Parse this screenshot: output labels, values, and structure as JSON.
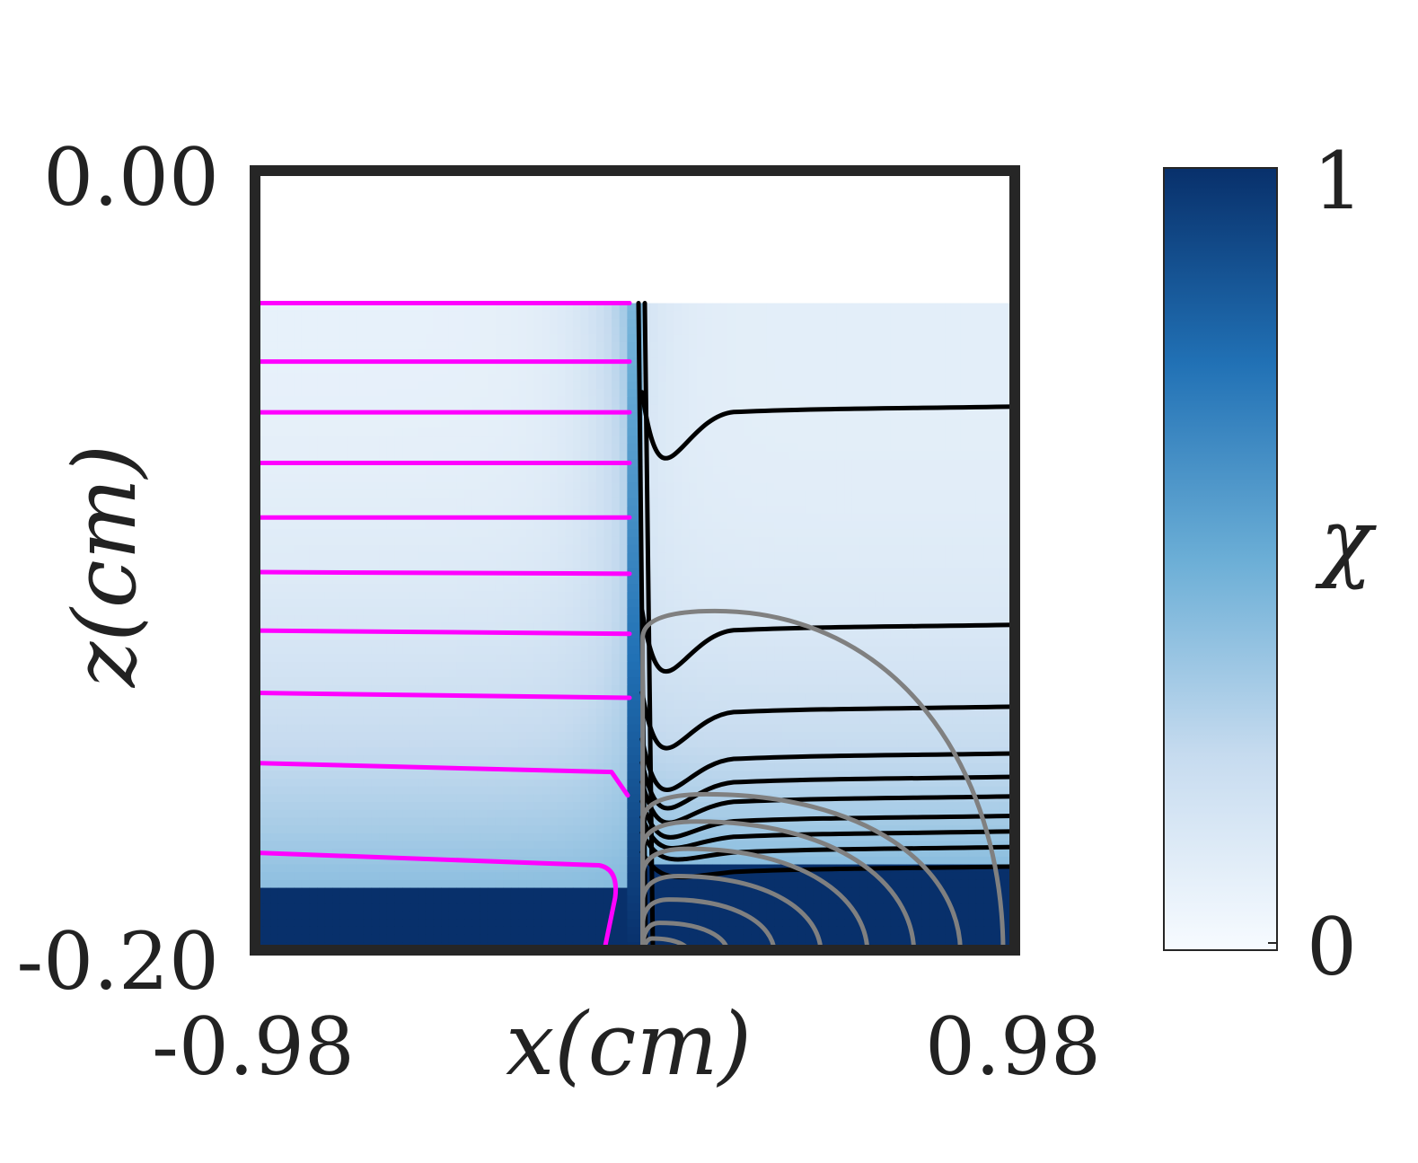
{
  "chart_data": {
    "type": "heatmap",
    "x_axis": {
      "label": "x(cm)",
      "tick_labels": [
        "-0.98",
        "0.98"
      ],
      "range": [
        -0.98,
        0.98
      ]
    },
    "y_axis": {
      "label": "z(cm)",
      "tick_labels": [
        "0.00",
        "-0.20"
      ],
      "range": [
        -0.2,
        0.0
      ]
    },
    "colorbar": {
      "label": "χ",
      "tick_labels": [
        "1",
        "0"
      ],
      "range": [
        0,
        1
      ],
      "colors": [
        "#f7fbff",
        "#c6dbef",
        "#6baed6",
        "#2171b5",
        "#08306b"
      ]
    },
    "field": {
      "interface_x": 0.0,
      "top_z": -0.034,
      "left_saturated_below_z": -0.183,
      "right_saturated_below_z": -0.178
    },
    "contour_colors": {
      "left": "#ff00ff",
      "right": "#000000",
      "lower_right": "#808080"
    },
    "left_contours_z": [
      -0.034,
      -0.049,
      -0.062,
      -0.075,
      -0.089,
      -0.103,
      -0.118,
      -0.134,
      -0.152,
      -0.175
    ],
    "right_contours_z": [
      -0.061,
      -0.117,
      -0.138,
      -0.15,
      -0.156,
      -0.161,
      -0.166,
      -0.17,
      -0.174,
      -0.179
    ],
    "lower_right_arcs": [
      {
        "center_x": 0.02,
        "radius_x": 0.93,
        "top_z": -0.113
      },
      {
        "center_x": 0.02,
        "radius_x": 0.82,
        "top_z": -0.16
      },
      {
        "center_x": 0.02,
        "radius_x": 0.7,
        "top_z": -0.167
      },
      {
        "center_x": 0.02,
        "radius_x": 0.58,
        "top_z": -0.174
      },
      {
        "center_x": 0.02,
        "radius_x": 0.46,
        "top_z": -0.181
      },
      {
        "center_x": 0.02,
        "radius_x": 0.34,
        "top_z": -0.187
      },
      {
        "center_x": 0.02,
        "radius_x": 0.22,
        "top_z": -0.193
      },
      {
        "center_x": 0.02,
        "radius_x": 0.12,
        "top_z": -0.197
      }
    ]
  }
}
